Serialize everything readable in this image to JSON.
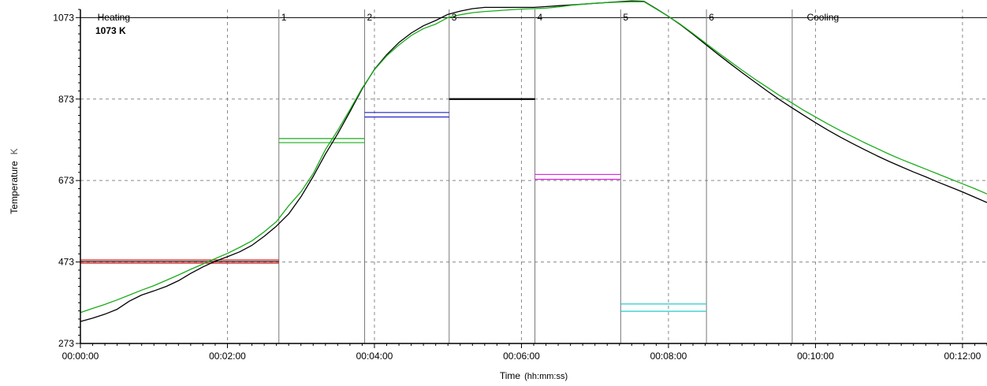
{
  "chart_data": {
    "type": "line",
    "xlabel": "Time",
    "xlabel_unit": "(hh:mm:ss)",
    "ylabel": "Temperature",
    "ylabel_unit": "K",
    "xlim": [
      0,
      740
    ],
    "ylim": [
      273,
      1093
    ],
    "x_ticks": [
      {
        "value": 0,
        "label": "00:00:00"
      },
      {
        "value": 120,
        "label": "00:02:00"
      },
      {
        "value": 240,
        "label": "00:04:00"
      },
      {
        "value": 360,
        "label": "00:06:00"
      },
      {
        "value": 480,
        "label": "00:08:00"
      },
      {
        "value": 600,
        "label": "00:10:00"
      },
      {
        "value": 720,
        "label": "00:12:00"
      }
    ],
    "y_ticks": [
      {
        "value": 273,
        "label": "273"
      },
      {
        "value": 473,
        "label": "473"
      },
      {
        "value": 673,
        "label": "673"
      },
      {
        "value": 873,
        "label": "873"
      },
      {
        "value": 1073,
        "label": "1073"
      }
    ],
    "grid": true,
    "setpoint_line": {
      "value": 1073,
      "label": "1073 K"
    },
    "segment_labels": [
      {
        "x": 12,
        "text": "Heating"
      },
      {
        "x": 162,
        "text": "1"
      },
      {
        "x": 232,
        "text": "2"
      },
      {
        "x": 301,
        "text": "3"
      },
      {
        "x": 371,
        "text": "4"
      },
      {
        "x": 441,
        "text": "5"
      },
      {
        "x": 511,
        "text": "6"
      },
      {
        "x": 591,
        "text": "Cooling"
      }
    ],
    "segment_boundaries": [
      162,
      232,
      301,
      371,
      441,
      511,
      581
    ],
    "series": [
      {
        "color": "#000000",
        "x": [
          0,
          10,
          20,
          30,
          40,
          50,
          60,
          70,
          80,
          90,
          100,
          110,
          120,
          130,
          140,
          150,
          160,
          170,
          180,
          190,
          200,
          210,
          220,
          230,
          240,
          250,
          260,
          270,
          280,
          290,
          300,
          310,
          320,
          330,
          340,
          350,
          360,
          370,
          380,
          390,
          400,
          410,
          420,
          430,
          440,
          450,
          460,
          470,
          480,
          490,
          500,
          510,
          520,
          530,
          540,
          550,
          560,
          570,
          580,
          590,
          600,
          610,
          620,
          630,
          640,
          650,
          660,
          670,
          680,
          690,
          700,
          710,
          720,
          730,
          740
        ],
        "y": [
          327,
          335,
          345,
          357,
          377,
          392,
          402,
          413,
          427,
          445,
          461,
          475,
          486,
          498,
          514,
          536,
          561,
          591,
          633,
          683,
          738,
          788,
          842,
          898,
          946,
          982,
          1012,
          1035,
          1053,
          1066,
          1081,
          1089,
          1095,
          1098,
          1098,
          1098,
          1098,
          1098,
          1100,
          1102,
          1104,
          1106,
          1108,
          1110,
          1112,
          1114,
          1113,
          1095,
          1076,
          1055,
          1032,
          1008,
          984,
          961,
          938,
          916,
          894,
          873,
          853,
          834,
          815,
          797,
          780,
          764,
          749,
          734,
          720,
          707,
          694,
          682,
          669,
          657,
          645,
          632,
          619
        ]
      },
      {
        "color": "#1aac1a",
        "x": [
          0,
          10,
          20,
          30,
          40,
          50,
          60,
          70,
          80,
          90,
          100,
          110,
          120,
          130,
          140,
          150,
          160,
          170,
          180,
          190,
          200,
          210,
          220,
          230,
          240,
          250,
          260,
          270,
          280,
          290,
          300,
          310,
          320,
          330,
          340,
          350,
          360,
          370,
          380,
          390,
          400,
          410,
          420,
          430,
          440,
          450,
          460,
          470,
          480,
          490,
          500,
          510,
          520,
          530,
          540,
          550,
          560,
          570,
          580,
          590,
          600,
          610,
          620,
          630,
          640,
          650,
          660,
          670,
          680,
          690,
          700,
          710,
          720,
          730,
          740
        ],
        "y": [
          349,
          359,
          369,
          380,
          392,
          404,
          415,
          428,
          441,
          455,
          468,
          481,
          494,
          509,
          525,
          547,
          572,
          611,
          645,
          690,
          749,
          796,
          847,
          900,
          945,
          979,
          1006,
          1029,
          1046,
          1057,
          1073,
          1080,
          1085,
          1088,
          1090,
          1092,
          1094,
          1095,
          1096,
          1099,
          1103,
          1106,
          1108,
          1110,
          1111,
          1112,
          1112,
          1094,
          1076,
          1056,
          1034,
          1011,
          988,
          966,
          944,
          923,
          903,
          883,
          865,
          846,
          829,
          812,
          796,
          781,
          766,
          752,
          738,
          725,
          713,
          701,
          689,
          677,
          665,
          653,
          640
        ]
      }
    ],
    "bands": [
      {
        "x0": 0,
        "x1": 162,
        "lines": [
          {
            "y": 478,
            "color": "#e52222"
          },
          {
            "y": 470,
            "color": "#e52222"
          },
          {
            "y": 474,
            "color": "#000000"
          }
        ]
      },
      {
        "x0": 162,
        "x1": 232,
        "lines": [
          {
            "y": 776,
            "color": "#1aac1a"
          },
          {
            "y": 766,
            "color": "#1aac1a"
          }
        ]
      },
      {
        "x0": 232,
        "x1": 301,
        "lines": [
          {
            "y": 840,
            "color": "#2222cc"
          },
          {
            "y": 829,
            "color": "#2222cc"
          }
        ]
      },
      {
        "x0": 301,
        "x1": 371,
        "lines": [
          {
            "y": 874,
            "color": "#000000"
          },
          {
            "y": 872,
            "color": "#000000"
          }
        ]
      },
      {
        "x0": 371,
        "x1": 441,
        "lines": [
          {
            "y": 688,
            "color": "#e020e0"
          },
          {
            "y": 676,
            "color": "#e020e0"
          }
        ]
      },
      {
        "x0": 441,
        "x1": 511,
        "lines": [
          {
            "y": 370,
            "color": "#22cccc"
          },
          {
            "y": 352,
            "color": "#22cccc"
          }
        ]
      }
    ]
  }
}
